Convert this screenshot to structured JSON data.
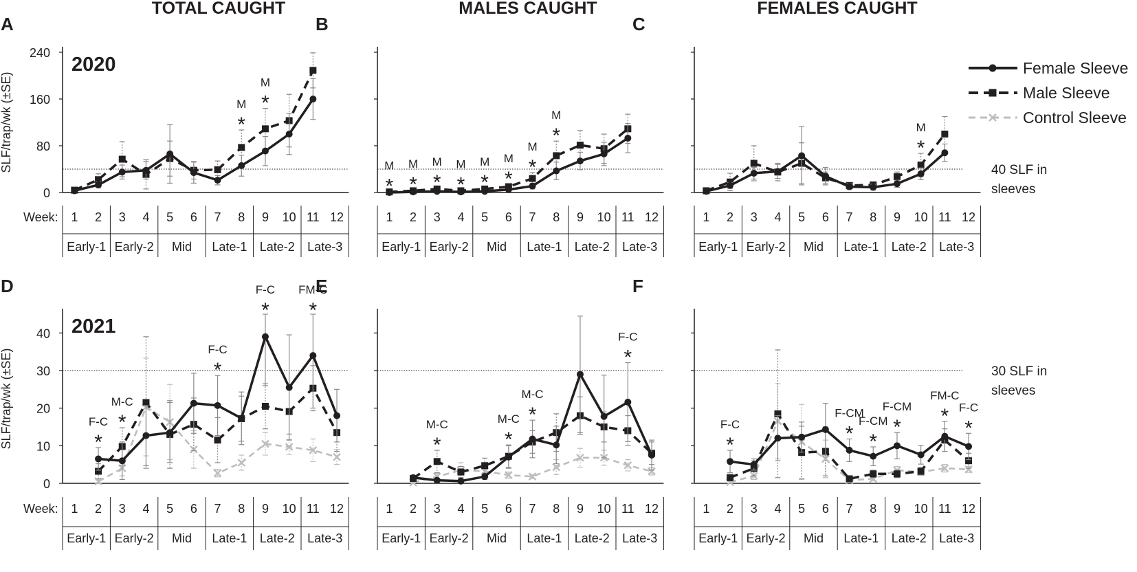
{
  "figure": {
    "column_titles": [
      "TOTAL CAUGHT",
      "MALES CAUGHT",
      "FEMALES CAUGHT"
    ],
    "week_label": "Week:",
    "y_axis_label": "SLF/trap/wk (±SE)",
    "weeks": [
      "1",
      "2",
      "3",
      "4",
      "5",
      "6",
      "7",
      "8",
      "9",
      "10",
      "11",
      "12"
    ],
    "periods": [
      "Early-1",
      "Early-2",
      "Mid",
      "Late-1",
      "Late-2",
      "Late-3"
    ],
    "legend": [
      {
        "name": "Female Sleeve",
        "color": "#231f20",
        "marker": "circle",
        "dash": "solid"
      },
      {
        "name": "Male Sleeve",
        "color": "#231f20",
        "marker": "square",
        "dash": "dashed"
      },
      {
        "name": "Control Sleeve",
        "color": "#bcbdc0",
        "marker": "x",
        "dash": "dashed"
      }
    ],
    "threshold_labels": {
      "2020": [
        "40 SLF in",
        "sleeves"
      ],
      "2021": [
        "30 SLF in",
        "sleeves"
      ]
    },
    "years": {
      "2020": "2020",
      "2021": "2021"
    }
  },
  "chart_data": [
    {
      "panel": "A",
      "type": "line",
      "year": "2020",
      "title": "TOTAL CAUGHT",
      "ylabel": "SLF/trap/wk (±SE)",
      "ylim": [
        0,
        240
      ],
      "yticks": [
        0,
        80,
        160,
        240
      ],
      "threshold": 40,
      "series": [
        {
          "name": "Female Sleeve",
          "weeks": [
            1,
            2,
            3,
            4,
            5,
            6,
            7,
            8,
            9,
            10,
            11
          ],
          "values": [
            3,
            13,
            35,
            38,
            66,
            34,
            21,
            46,
            71,
            100,
            160
          ],
          "se": [
            2,
            5,
            12,
            15,
            50,
            18,
            8,
            18,
            25,
            35,
            35
          ]
        },
        {
          "name": "Male Sleeve",
          "weeks": [
            1,
            2,
            3,
            4,
            5,
            6,
            7,
            8,
            9,
            10,
            11
          ],
          "values": [
            4,
            22,
            57,
            31,
            58,
            38,
            39,
            77,
            109,
            123,
            209
          ],
          "se": [
            3,
            10,
            30,
            25,
            30,
            15,
            15,
            30,
            35,
            45,
            30
          ]
        }
      ],
      "significance": [
        {
          "week": 8,
          "label": "M"
        },
        {
          "week": 9,
          "label": "M"
        }
      ]
    },
    {
      "panel": "B",
      "type": "line",
      "year": "2020",
      "title": "MALES CAUGHT",
      "ylabel": "SLF/trap/wk (±SE)",
      "ylim": [
        0,
        240
      ],
      "yticks": [
        0,
        80,
        160,
        240
      ],
      "threshold": 40,
      "series": [
        {
          "name": "Female Sleeve",
          "weeks": [
            1,
            2,
            3,
            4,
            5,
            6,
            7,
            8,
            9,
            10,
            11
          ],
          "values": [
            0,
            1,
            2,
            1,
            2,
            5,
            11,
            37,
            54,
            66,
            93
          ],
          "se": [
            1,
            1,
            1,
            1,
            1,
            2,
            5,
            15,
            15,
            20,
            25
          ]
        },
        {
          "name": "Male Sleeve",
          "weeks": [
            1,
            2,
            3,
            4,
            5,
            6,
            7,
            8,
            9,
            10,
            11
          ],
          "values": [
            1,
            3,
            6,
            3,
            6,
            10,
            24,
            63,
            81,
            75,
            109
          ],
          "se": [
            1,
            2,
            2,
            1,
            2,
            4,
            10,
            25,
            25,
            25,
            25
          ]
        }
      ],
      "significance": [
        {
          "week": 1,
          "label": "M"
        },
        {
          "week": 2,
          "label": "M"
        },
        {
          "week": 3,
          "label": "M"
        },
        {
          "week": 4,
          "label": "M"
        },
        {
          "week": 5,
          "label": "M"
        },
        {
          "week": 6,
          "label": "M"
        },
        {
          "week": 7,
          "label": "M"
        },
        {
          "week": 8,
          "label": "M"
        }
      ]
    },
    {
      "panel": "C",
      "type": "line",
      "year": "2020",
      "title": "FEMALES CAUGHT",
      "ylabel": "SLF/trap/wk (±SE)",
      "ylim": [
        0,
        240
      ],
      "yticks": [
        0,
        80,
        160,
        240
      ],
      "threshold": 40,
      "series": [
        {
          "name": "Female Sleeve",
          "weeks": [
            1,
            2,
            3,
            4,
            5,
            6,
            7,
            8,
            9,
            10,
            11
          ],
          "values": [
            2,
            12,
            33,
            36,
            63,
            28,
            10,
            9,
            15,
            32,
            68
          ],
          "se": [
            1,
            5,
            10,
            12,
            50,
            15,
            5,
            5,
            6,
            10,
            15
          ]
        },
        {
          "name": "Male Sleeve",
          "weeks": [
            1,
            2,
            3,
            4,
            5,
            6,
            7,
            8,
            9,
            10,
            11
          ],
          "values": [
            3,
            18,
            50,
            35,
            50,
            25,
            12,
            13,
            27,
            47,
            100
          ],
          "se": [
            2,
            15,
            30,
            15,
            35,
            10,
            5,
            5,
            8,
            20,
            30
          ]
        }
      ],
      "significance": [
        {
          "week": 10,
          "label": "M"
        }
      ]
    },
    {
      "panel": "D",
      "type": "line",
      "year": "2021",
      "title": "TOTAL CAUGHT",
      "ylabel": "SLF/trap/wk (±SE)",
      "ylim": [
        0,
        45
      ],
      "yticks": [
        0,
        10,
        20,
        30,
        40
      ],
      "threshold": 30,
      "series": [
        {
          "name": "Female Sleeve",
          "weeks": [
            2,
            3,
            4,
            5,
            6,
            7,
            8,
            9,
            10,
            11,
            12
          ],
          "values": [
            6.5,
            6,
            12.7,
            13.5,
            21.3,
            20.7,
            17.3,
            39,
            25.5,
            34,
            18
          ],
          "se": [
            3,
            5,
            8,
            8,
            8,
            8,
            7,
            13,
            14,
            14,
            7
          ]
        },
        {
          "name": "Male Sleeve",
          "weeks": [
            2,
            3,
            4,
            5,
            6,
            7,
            8,
            9,
            10,
            11,
            12
          ],
          "values": [
            3.2,
            9.8,
            21.5,
            13,
            15.7,
            11.5,
            17.2,
            20.5,
            19.1,
            25.3,
            13.5
          ],
          "se": [
            2,
            5,
            17.5,
            9,
            7,
            6,
            6,
            6,
            6,
            6,
            5
          ]
        },
        {
          "name": "Control Sleeve",
          "weeks": [
            2,
            3,
            4,
            5,
            6,
            7,
            8,
            9,
            10,
            11,
            12
          ],
          "values": [
            0.5,
            4,
            20.3,
            16.3,
            9,
            2.7,
            5.5,
            10.5,
            9.7,
            8.8,
            7
          ],
          "se": [
            0.5,
            2,
            13,
            10,
            5,
            1,
            2,
            3,
            2,
            3,
            2
          ]
        }
      ],
      "significance": [
        {
          "week": 2,
          "label": "F-C"
        },
        {
          "week": 3,
          "label": "M-C"
        },
        {
          "week": 7,
          "label": "F-C"
        },
        {
          "week": 9,
          "label": "F-C"
        },
        {
          "week": 11,
          "label": "FM-C"
        }
      ]
    },
    {
      "panel": "E",
      "type": "line",
      "year": "2021",
      "title": "MALES CAUGHT",
      "ylabel": "SLF/trap/wk (±SE)",
      "ylim": [
        0,
        45
      ],
      "yticks": [
        0,
        10,
        20,
        30,
        40
      ],
      "threshold": 30,
      "series": [
        {
          "name": "Female Sleeve",
          "weeks": [
            2,
            3,
            4,
            5,
            6,
            7,
            8,
            9,
            10,
            11,
            12
          ],
          "values": [
            1.5,
            0.8,
            0.6,
            1.8,
            7,
            11.8,
            10.2,
            29,
            17.8,
            21.6,
            7.5
          ],
          "se": [
            0.5,
            0.5,
            0.3,
            0.8,
            3,
            5,
            5,
            15.5,
            11,
            10.5,
            4
          ]
        },
        {
          "name": "Male Sleeve",
          "weeks": [
            2,
            3,
            4,
            5,
            6,
            7,
            8,
            9,
            10,
            11,
            12
          ],
          "values": [
            1.3,
            5.8,
            3,
            4.7,
            7.2,
            11,
            13.5,
            18,
            15,
            14,
            8
          ],
          "se": [
            0.8,
            3,
            1.5,
            2,
            3,
            3,
            5,
            5,
            4,
            4,
            3
          ]
        },
        {
          "name": "Control Sleeve",
          "weeks": [
            2,
            3,
            4,
            5,
            6,
            7,
            8,
            9,
            10,
            11,
            12
          ],
          "values": [
            0.2,
            1.8,
            3.5,
            3.2,
            2.2,
            1.8,
            4.3,
            6.8,
            6.8,
            4.8,
            3.2
          ],
          "se": [
            0.1,
            0.8,
            2,
            1.5,
            0.8,
            0.5,
            2,
            2.5,
            2,
            1.5,
            1
          ]
        }
      ],
      "significance": [
        {
          "week": 3,
          "label": "M-C"
        },
        {
          "week": 6,
          "label": "M-C"
        },
        {
          "week": 7,
          "label": "M-C"
        },
        {
          "week": 11,
          "label": "F-C"
        }
      ]
    },
    {
      "panel": "F",
      "type": "line",
      "year": "2021",
      "title": "FEMALES CAUGHT",
      "ylabel": "SLF/trap/wk (±SE)",
      "ylim": [
        0,
        45
      ],
      "yticks": [
        0,
        10,
        20,
        30,
        40
      ],
      "threshold": 30,
      "series": [
        {
          "name": "Female Sleeve",
          "weeks": [
            2,
            3,
            4,
            5,
            6,
            7,
            8,
            9,
            10,
            11,
            12
          ],
          "values": [
            5.8,
            5,
            12,
            12.3,
            14.3,
            8.8,
            7.2,
            10,
            7.6,
            12.5,
            9.8
          ],
          "se": [
            3,
            1.5,
            6,
            4,
            7,
            3,
            2.5,
            3.5,
            2.5,
            4,
            3.5
          ]
        },
        {
          "name": "Male Sleeve",
          "weeks": [
            2,
            3,
            4,
            5,
            6,
            7,
            8,
            9,
            10,
            11,
            12
          ],
          "values": [
            1.5,
            4,
            18.5,
            8.2,
            8.5,
            1.2,
            2.5,
            2.5,
            3.2,
            11.5,
            6
          ],
          "se": [
            0.8,
            2,
            17,
            7,
            6.5,
            0.5,
            1,
            1,
            1,
            3,
            2
          ]
        },
        {
          "name": "Control Sleeve",
          "weeks": [
            2,
            3,
            4,
            5,
            6,
            7,
            8,
            9,
            10,
            11,
            12
          ],
          "values": [
            0.3,
            2,
            16.5,
            11,
            6.5,
            0.8,
            1.2,
            3.5,
            3,
            4,
            3.7
          ],
          "se": [
            0.2,
            1,
            10,
            10,
            5,
            0.3,
            0.5,
            1,
            0.8,
            1,
            0.8
          ]
        }
      ],
      "significance": [
        {
          "week": 2,
          "label": "F-C"
        },
        {
          "week": 7,
          "label": "F-CM"
        },
        {
          "week": 8,
          "label": "F-CM"
        },
        {
          "week": 9,
          "label": "F-CM"
        },
        {
          "week": 11,
          "label": "FM-C"
        },
        {
          "week": 12,
          "label": "F-C"
        }
      ]
    }
  ]
}
